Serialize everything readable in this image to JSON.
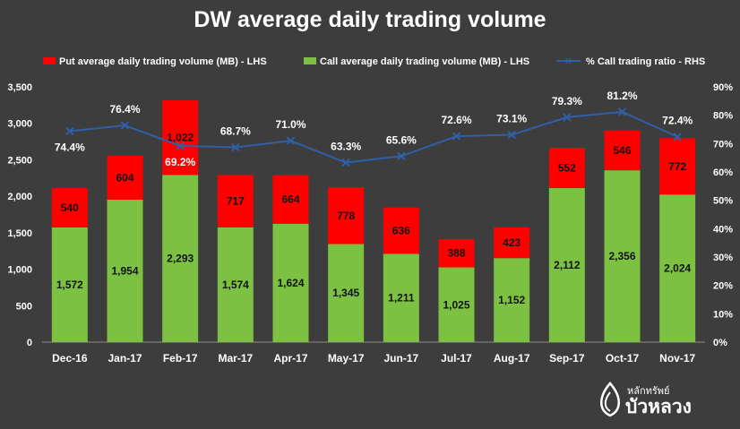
{
  "colors": {
    "background": "#3d3d3d",
    "put": "#ff0000",
    "call": "#7cc142",
    "ratio_line": "#2f5fa7",
    "text": "#ffffff",
    "grid": "#5a5a5a"
  },
  "logo": {
    "small_text": "หลักทรัพย์",
    "large_text": "บัวหลวง",
    "icon": "lotus-drop-icon"
  },
  "chart_data": {
    "type": "bar",
    "title": "DW average daily trading volume",
    "legend_position": "top",
    "categories": [
      "Dec-16",
      "Jan-17",
      "Feb-17",
      "Mar-17",
      "Apr-17",
      "May-17",
      "Jun-17",
      "Jul-17",
      "Aug-17",
      "Sep-17",
      "Oct-17",
      "Nov-17"
    ],
    "stacked": true,
    "series": [
      {
        "name": "Put average daily trading volume (MB) - LHS",
        "type": "bar",
        "axis": "left",
        "values": [
          540,
          604,
          1022,
          717,
          664,
          778,
          636,
          388,
          423,
          552,
          546,
          772
        ],
        "labels": [
          "540",
          "604",
          "1,022",
          "717",
          "664",
          "778",
          "636",
          "388",
          "423",
          "552",
          "546",
          "772"
        ]
      },
      {
        "name": "Call average daily trading volume (MB) - LHS",
        "type": "bar",
        "axis": "left",
        "values": [
          1572,
          1954,
          2293,
          1574,
          1624,
          1345,
          1211,
          1025,
          1152,
          2112,
          2356,
          2024
        ],
        "labels": [
          "1,572",
          "1,954",
          "2,293",
          "1,574",
          "1,624",
          "1,345",
          "1,211",
          "1,025",
          "1,152",
          "2,112",
          "2,356",
          "2,024"
        ]
      },
      {
        "name": "% Call trading ratio - RHS",
        "type": "line",
        "axis": "right",
        "marker": "x",
        "values": [
          74.4,
          76.4,
          69.2,
          68.7,
          71.0,
          63.3,
          65.6,
          72.6,
          73.1,
          79.3,
          81.2,
          72.4
        ],
        "labels": [
          "74.4%",
          "76.4%",
          "69.2%",
          "68.7%",
          "71.0%",
          "63.3%",
          "65.6%",
          "72.6%",
          "73.1%",
          "79.3%",
          "81.2%",
          "72.4%"
        ]
      }
    ],
    "y_left": {
      "min": 0,
      "max": 3500,
      "step": 500,
      "ticks": [
        "0",
        "500",
        "1,000",
        "1,500",
        "2,000",
        "2,500",
        "3,000",
        "3,500"
      ]
    },
    "y_right": {
      "min": 0,
      "max": 90,
      "step": 10,
      "ticks": [
        "0%",
        "10%",
        "20%",
        "30%",
        "40%",
        "50%",
        "60%",
        "70%",
        "80%",
        "90%"
      ]
    },
    "grid": false
  }
}
